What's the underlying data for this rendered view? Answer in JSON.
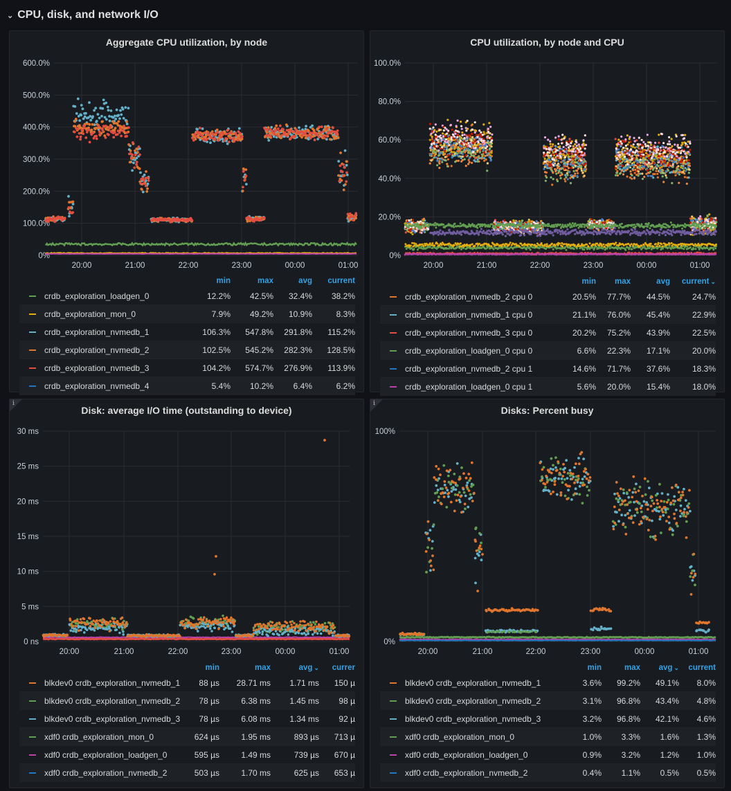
{
  "row": {
    "chevron": "⌄",
    "title": "CPU, disk, and network I/O"
  },
  "colors": {
    "loadgen": "#629e51",
    "mon": "#e5ac0e",
    "nvmedb_1": "#64b0c8",
    "nvmedb_2": "#e0752d",
    "nvmedb_3": "#e24d42",
    "nvmedb_4": "#1f78c1",
    "magenta": "#ba43a9",
    "purple": "#705da0",
    "accent": "#33a2e5",
    "grid": "#2a2d33",
    "axis_text": "#c7d0d9"
  },
  "legend_headers": {
    "min": "min",
    "max": "max",
    "avg": "avg",
    "current": "current",
    "current_cut": "currer"
  },
  "panels": {
    "agg_cpu": {
      "title": "Aggregate CPU utilization, by node",
      "y_ticks": [
        "600.0%",
        "500.0%",
        "400.0%",
        "300.0%",
        "200.0%",
        "100.0%",
        "0%"
      ],
      "x_ticks": [
        "20:00",
        "21:00",
        "22:00",
        "23:00",
        "00:00",
        "01:00"
      ],
      "legend": [
        {
          "name": "crdb_exploration_loadgen_0",
          "color": "#629e51",
          "min": "12.2%",
          "max": "42.5%",
          "avg": "32.4%",
          "current": "38.2%"
        },
        {
          "name": "crdb_exploration_mon_0",
          "color": "#e5ac0e",
          "min": "7.9%",
          "max": "49.2%",
          "avg": "10.9%",
          "current": "8.3%"
        },
        {
          "name": "crdb_exploration_nvmedb_1",
          "color": "#64b0c8",
          "min": "106.3%",
          "max": "547.8%",
          "avg": "291.8%",
          "current": "115.2%"
        },
        {
          "name": "crdb_exploration_nvmedb_2",
          "color": "#e0752d",
          "min": "102.5%",
          "max": "545.2%",
          "avg": "282.3%",
          "current": "128.5%"
        },
        {
          "name": "crdb_exploration_nvmedb_3",
          "color": "#e24d42",
          "min": "104.2%",
          "max": "574.7%",
          "avg": "276.9%",
          "current": "113.9%"
        },
        {
          "name": "crdb_exploration_nvmedb_4",
          "color": "#1f78c1",
          "min": "5.4%",
          "max": "10.2%",
          "avg": "6.4%",
          "current": "6.2%"
        }
      ]
    },
    "cpu_by_cpu": {
      "title": "CPU utilization, by node and CPU",
      "y_ticks": [
        "100.0%",
        "80.0%",
        "60.0%",
        "40.0%",
        "20.0%",
        "0%"
      ],
      "x_ticks": [
        "20:00",
        "21:00",
        "22:00",
        "23:00",
        "00:00",
        "01:00"
      ],
      "legend": [
        {
          "name": "crdb_exploration_nvmedb_2 cpu 0",
          "color": "#e0752d",
          "min": "20.5%",
          "max": "77.7%",
          "avg": "44.5%",
          "current": "24.7%"
        },
        {
          "name": "crdb_exploration_nvmedb_1 cpu 0",
          "color": "#64b0c8",
          "min": "21.1%",
          "max": "76.0%",
          "avg": "45.4%",
          "current": "22.9%"
        },
        {
          "name": "crdb_exploration_nvmedb_3 cpu 0",
          "color": "#e24d42",
          "min": "20.2%",
          "max": "75.2%",
          "avg": "43.9%",
          "current": "22.5%"
        },
        {
          "name": "crdb_exploration_loadgen_0 cpu 0",
          "color": "#629e51",
          "min": "6.6%",
          "max": "22.3%",
          "avg": "17.1%",
          "current": "20.0%"
        },
        {
          "name": "crdb_exploration_nvmedb_2 cpu 1",
          "color": "#1f78c1",
          "min": "14.6%",
          "max": "71.7%",
          "avg": "37.6%",
          "current": "18.3%"
        },
        {
          "name": "crdb_exploration_loadgen_0 cpu 1",
          "color": "#ba43a9",
          "min": "5.6%",
          "max": "20.0%",
          "avg": "15.4%",
          "current": "18.0%"
        }
      ]
    },
    "disk_io_time": {
      "title": "Disk: average I/O time (outstanding to device)",
      "info": "i",
      "y_ticks": [
        "30 ms",
        "25 ms",
        "20 ms",
        "15 ms",
        "10 ms",
        "5 ms",
        "0 ns"
      ],
      "x_ticks": [
        "20:00",
        "21:00",
        "22:00",
        "23:00",
        "00:00",
        "01:00"
      ],
      "legend": [
        {
          "name": "blkdev0 crdb_exploration_nvmedb_1",
          "color": "#e0752d",
          "min": "88 µs",
          "max": "28.71 ms",
          "avg": "1.71 ms",
          "current": "150 µ"
        },
        {
          "name": "blkdev0 crdb_exploration_nvmedb_2",
          "color": "#629e51",
          "min": "78 µs",
          "max": "6.38 ms",
          "avg": "1.45 ms",
          "current": "98 µ"
        },
        {
          "name": "blkdev0 crdb_exploration_nvmedb_3",
          "color": "#64b0c8",
          "min": "78 µs",
          "max": "6.08 ms",
          "avg": "1.34 ms",
          "current": "92 µ"
        },
        {
          "name": "xdf0 crdb_exploration_mon_0",
          "color": "#629e51",
          "min": "624 µs",
          "max": "1.95 ms",
          "avg": "893 µs",
          "current": "713 µ"
        },
        {
          "name": "xdf0 crdb_exploration_loadgen_0",
          "color": "#ba43a9",
          "min": "595 µs",
          "max": "1.49 ms",
          "avg": "739 µs",
          "current": "670 µ"
        },
        {
          "name": "xdf0 crdb_exploration_nvmedb_2",
          "color": "#1f78c1",
          "min": "503 µs",
          "max": "1.70 ms",
          "avg": "625 µs",
          "current": "653 µ"
        }
      ]
    },
    "disk_busy": {
      "title": "Disks: Percent busy",
      "info": "i",
      "y_ticks": [
        "100%",
        "0%"
      ],
      "x_ticks": [
        "20:00",
        "21:00",
        "22:00",
        "23:00",
        "00:00",
        "01:00"
      ],
      "legend": [
        {
          "name": "blkdev0 crdb_exploration_nvmedb_1",
          "color": "#e0752d",
          "min": "3.6%",
          "max": "99.2%",
          "avg": "49.1%",
          "current": "8.0%"
        },
        {
          "name": "blkdev0 crdb_exploration_nvmedb_2",
          "color": "#629e51",
          "min": "3.1%",
          "max": "96.8%",
          "avg": "43.4%",
          "current": "4.8%"
        },
        {
          "name": "blkdev0 crdb_exploration_nvmedb_3",
          "color": "#64b0c8",
          "min": "3.2%",
          "max": "96.8%",
          "avg": "42.1%",
          "current": "4.6%"
        },
        {
          "name": "xdf0 crdb_exploration_mon_0",
          "color": "#629e51",
          "min": "1.0%",
          "max": "3.3%",
          "avg": "1.6%",
          "current": "1.3%"
        },
        {
          "name": "xdf0 crdb_exploration_loadgen_0",
          "color": "#ba43a9",
          "min": "0.9%",
          "max": "3.2%",
          "avg": "1.2%",
          "current": "1.0%"
        },
        {
          "name": "xdf0 crdb_exploration_nvmedb_2",
          "color": "#1f78c1",
          "min": "0.4%",
          "max": "1.1%",
          "avg": "0.5%",
          "current": "0.5%"
        }
      ]
    }
  }
}
